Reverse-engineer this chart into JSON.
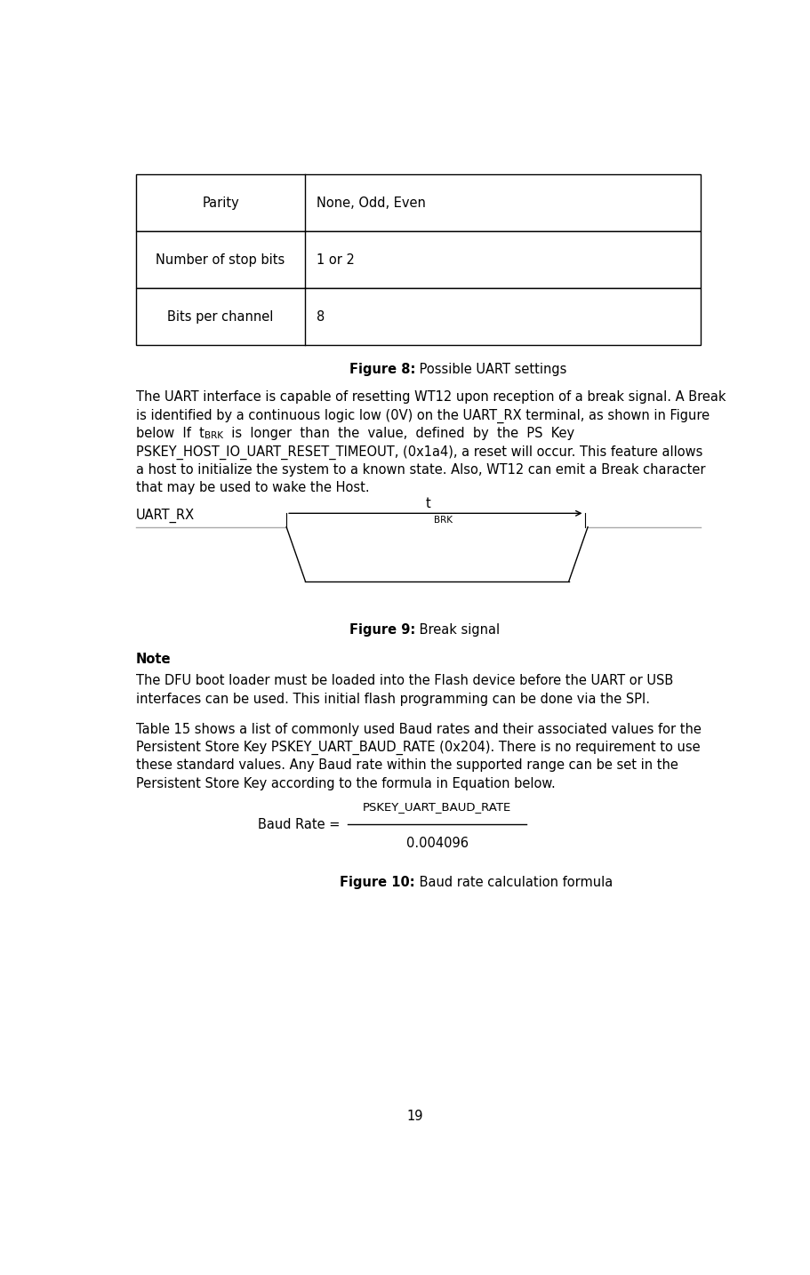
{
  "bg_color": "#ffffff",
  "table_rows": [
    [
      "Parity",
      "None, Odd, Even"
    ],
    [
      "Number of stop bits",
      "1 or 2"
    ],
    [
      "Bits per channel",
      "8"
    ]
  ],
  "fig8_bold": "Figure 8:",
  "fig8_normal": " Possible UART settings",
  "para1_lines": [
    "The UART interface is capable of resetting WT12 upon reception of a break signal. A Break",
    "is identified by a continuous logic low (0V) on the UART_RX terminal, as shown in Figure"
  ],
  "line3_before": "below  If  t",
  "line3_sub": "BRK",
  "line3_after": "  is  longer  than  the  value,  defined  by  the  PS  Key",
  "para1_lines2": [
    "PSKEY_HOST_IO_UART_RESET_TIMEOUT, (0x1a4), a reset will occur. This feature allows",
    "a host to initialize the system to a known state. Also, WT12 can emit a Break character",
    "that may be used to wake the Host."
  ],
  "signal_label": "UART_RX",
  "tbrk_main": "t",
  "tbrk_sub": "BRK",
  "fig9_bold": "Figure 9:",
  "fig9_normal": " Break signal",
  "note_bold": "Note",
  "note_colon": ":",
  "note_lines": [
    "The DFU boot loader must be loaded into the Flash device before the UART or USB",
    "interfaces can be used. This initial flash programming can be done via the SPI."
  ],
  "para2_lines": [
    "Table 15 shows a list of commonly used Baud rates and their associated values for the",
    "Persistent Store Key PSKEY_UART_BAUD_RATE (0x204). There is no requirement to use",
    "these standard values. Any Baud rate within the supported range can be set in the",
    "Persistent Store Key according to the formula in Equation below."
  ],
  "formula_prefix": "Baud Rate = ",
  "formula_numerator": "PSKEY_UART_BAUD_RATE",
  "formula_denominator": "0.004096",
  "fig10_bold": "Figure 10:",
  "fig10_normal": " Baud rate calculation formula",
  "page_number": "19"
}
